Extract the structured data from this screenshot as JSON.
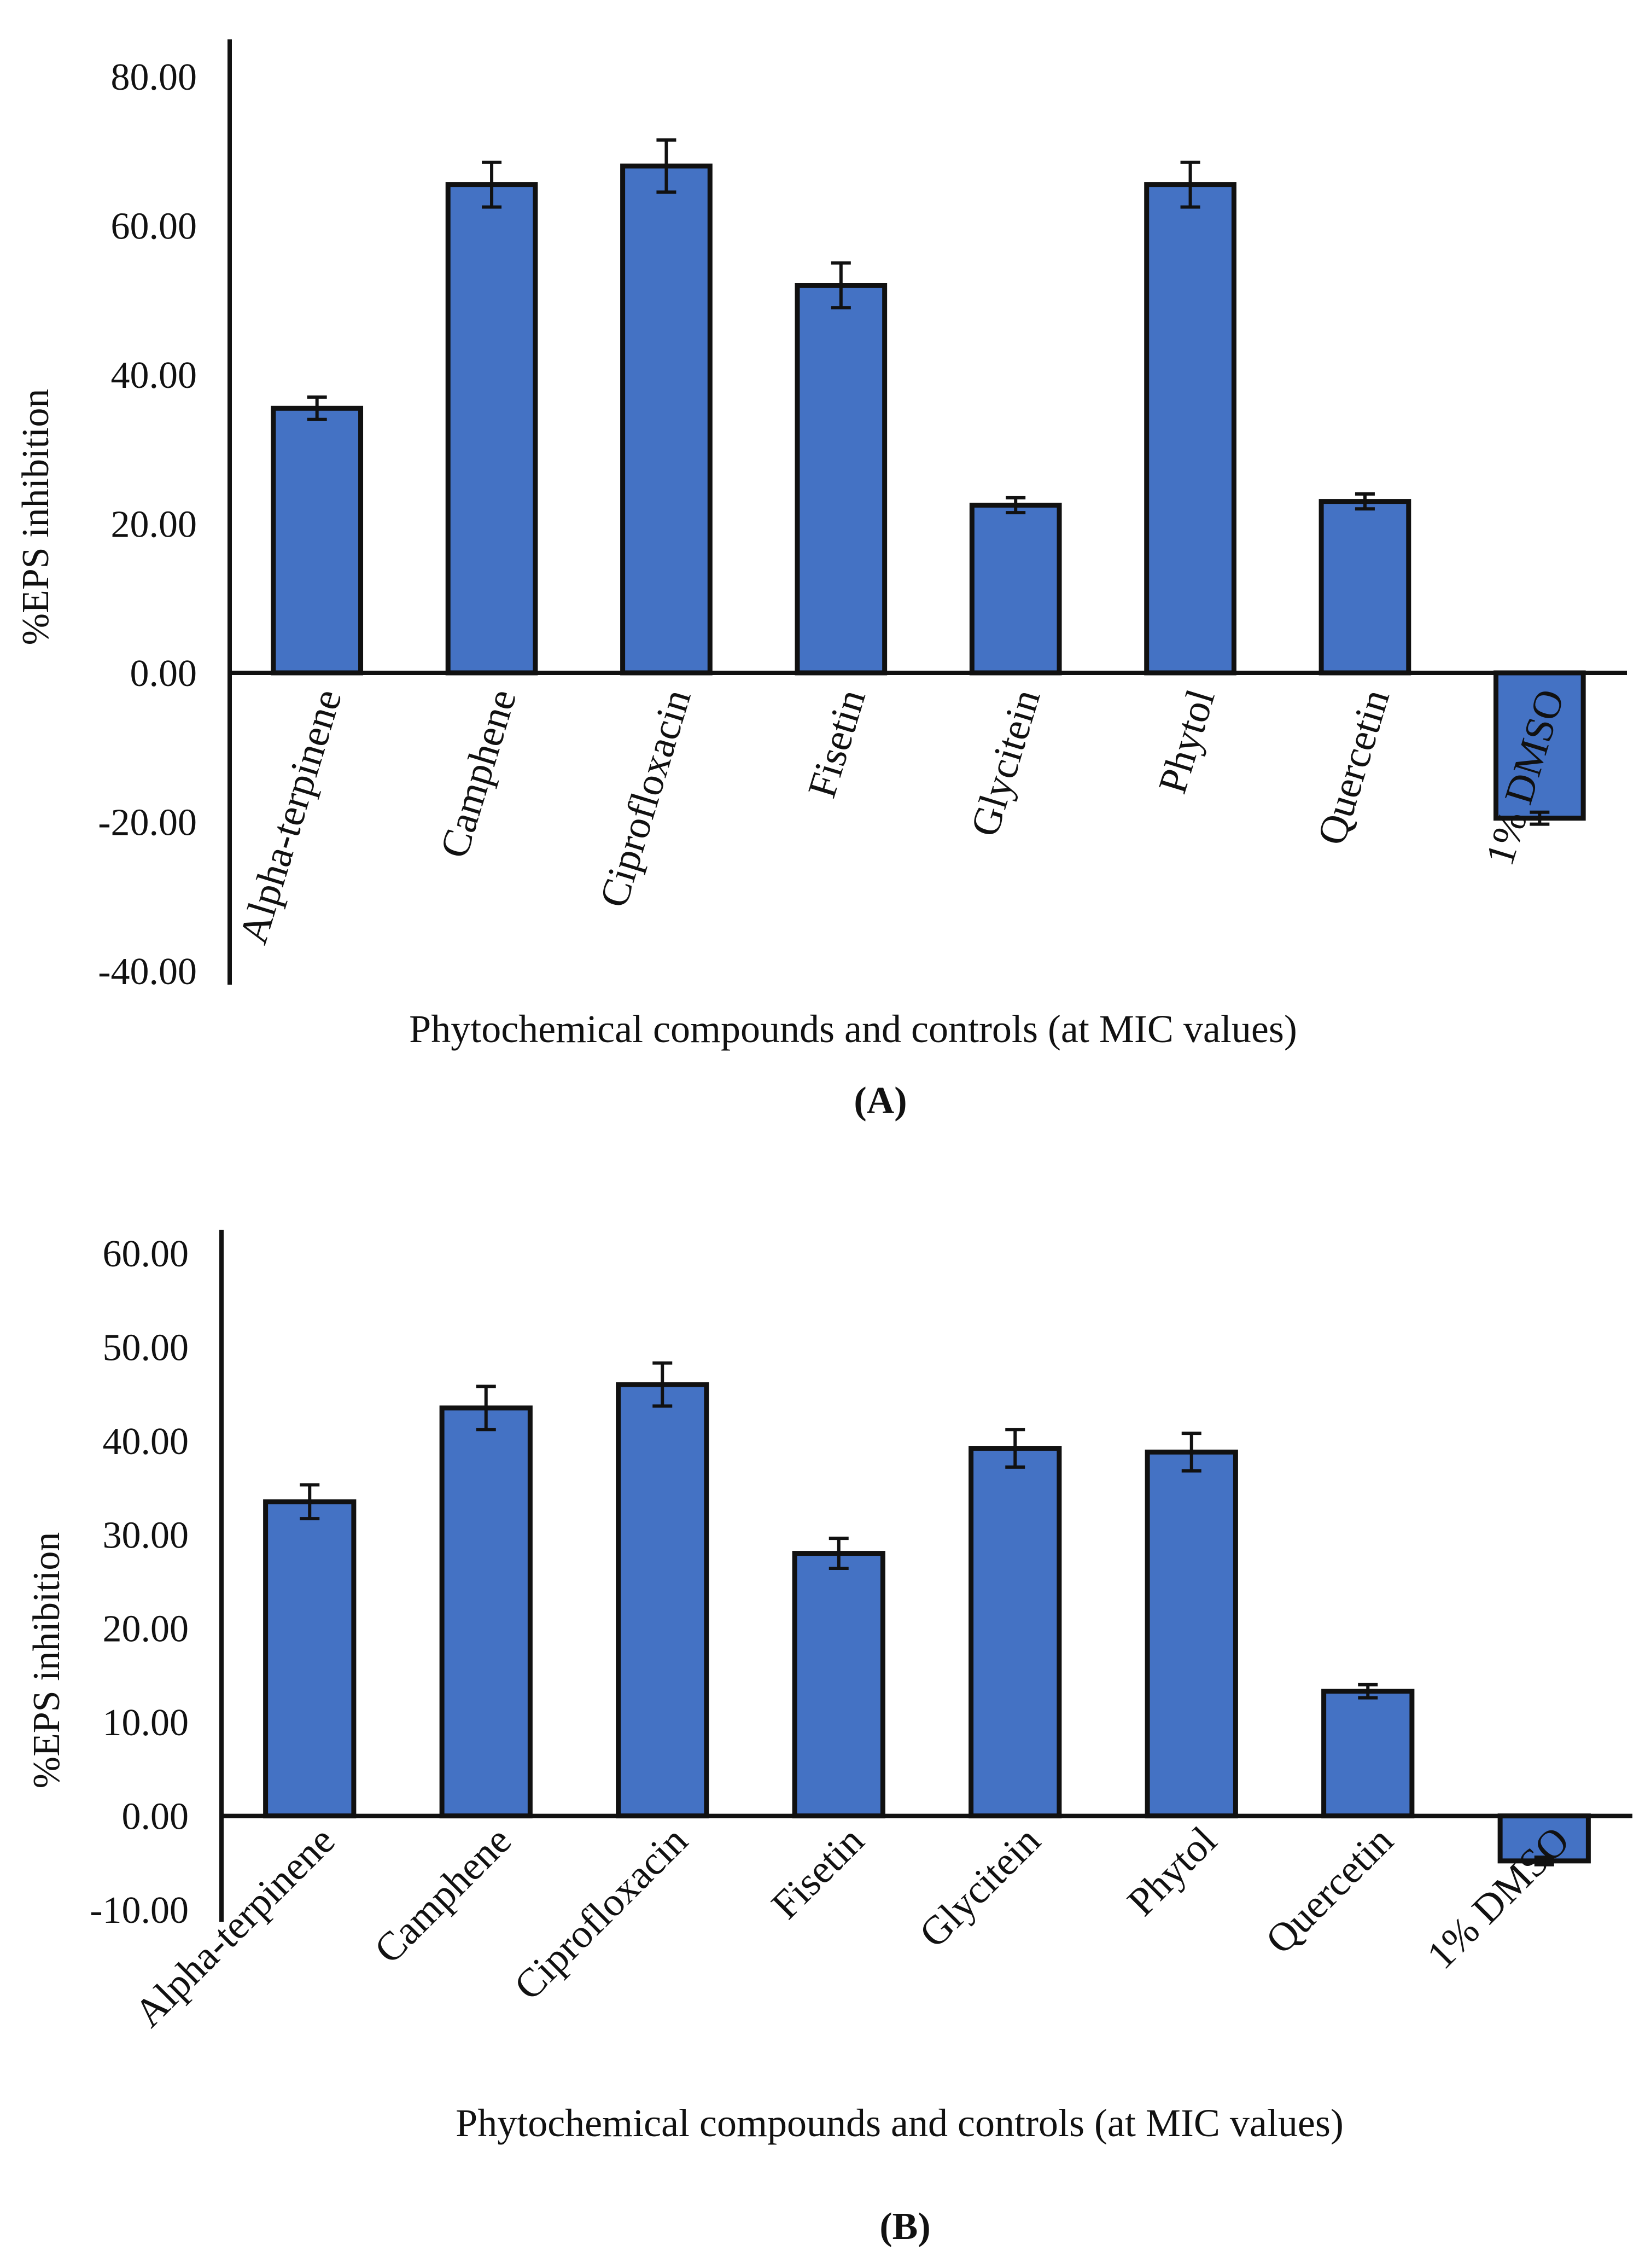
{
  "chart_data": [
    {
      "panel_label": "(A)",
      "type": "bar",
      "categories": [
        "Alpha-terpinene",
        "Camphene",
        "Ciprofloxacin",
        "Fisetin",
        "Glycitein",
        "Phytol",
        "Quercetin",
        "1% DMSO"
      ],
      "values": [
        35.5,
        65.5,
        68.0,
        52.0,
        22.5,
        65.5,
        23.0,
        -19.5
      ],
      "errors": [
        1.5,
        3.0,
        3.5,
        3.0,
        1.0,
        3.0,
        1.0,
        0.8
      ],
      "xlabel": "Phytochemical compounds and controls (at MIC values)",
      "ylabel": "%EPS inhibition",
      "ylim": [
        -40,
        80
      ],
      "yticks": [
        80,
        60,
        40,
        20,
        0,
        -20,
        -40
      ],
      "ytick_labels": [
        "80.00",
        "60.00",
        "40.00",
        "20.00",
        "0.00",
        "-20.00",
        "-40.00"
      ],
      "bar_color": "#4472C4",
      "grid": false
    },
    {
      "panel_label": "(B)",
      "type": "bar",
      "categories": [
        "Alpha-terpinene",
        "Camphene",
        "Ciprofloxacin",
        "Fisetin",
        "Glycitein",
        "Phytol",
        "Quercetin",
        "1% DMSO"
      ],
      "values": [
        33.5,
        43.5,
        46.0,
        28.0,
        39.2,
        38.8,
        13.3,
        -4.8
      ],
      "errors": [
        1.8,
        2.3,
        2.3,
        1.6,
        2.0,
        2.0,
        0.7,
        0.4
      ],
      "xlabel": "Phytochemical compounds and controls (at MIC values)",
      "ylabel": "%EPS inhibition",
      "ylim": [
        -10,
        60
      ],
      "yticks": [
        60,
        50,
        40,
        30,
        20,
        10,
        0,
        -10
      ],
      "ytick_labels": [
        "60.00",
        "50.00",
        "40.00",
        "30.00",
        "20.00",
        "10.00",
        "0.00",
        "-10.00"
      ],
      "bar_color": "#4472C4",
      "grid": false
    }
  ]
}
